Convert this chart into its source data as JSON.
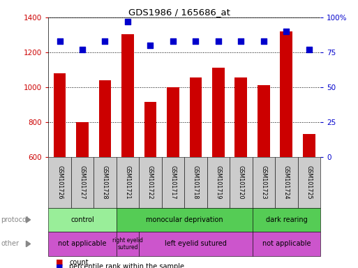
{
  "title": "GDS1986 / 165686_at",
  "samples": [
    "GSM101726",
    "GSM101727",
    "GSM101728",
    "GSM101721",
    "GSM101722",
    "GSM101717",
    "GSM101718",
    "GSM101719",
    "GSM101720",
    "GSM101723",
    "GSM101724",
    "GSM101725"
  ],
  "counts": [
    1080,
    800,
    1040,
    1305,
    915,
    1000,
    1055,
    1110,
    1055,
    1010,
    1320,
    730
  ],
  "percentiles": [
    83,
    77,
    83,
    97,
    80,
    83,
    83,
    83,
    83,
    83,
    90,
    77
  ],
  "ylim_left": [
    600,
    1400
  ],
  "ylim_right": [
    0,
    100
  ],
  "yticks_left": [
    600,
    800,
    1000,
    1200,
    1400
  ],
  "yticks_right": [
    0,
    25,
    50,
    75,
    100
  ],
  "bar_color": "#cc0000",
  "dot_color": "#0000cc",
  "bar_bottom": 600,
  "protocol_groups": [
    {
      "label": "control",
      "start": 0,
      "end": 3,
      "color": "#aaeea a"
    },
    {
      "label": "monocular deprivation",
      "start": 3,
      "end": 9,
      "color": "#66dd66"
    },
    {
      "label": "dark rearing",
      "start": 9,
      "end": 12,
      "color": "#66dd66"
    }
  ],
  "other_groups": [
    {
      "label": "not applicable",
      "start": 0,
      "end": 3,
      "color": "#dd66dd"
    },
    {
      "label": "right eyelid\nsutured",
      "start": 3,
      "end": 4,
      "color": "#dd66dd"
    },
    {
      "label": "left eyelid sutured",
      "start": 4,
      "end": 9,
      "color": "#dd66dd"
    },
    {
      "label": "not applicable",
      "start": 9,
      "end": 12,
      "color": "#dd66dd"
    }
  ],
  "protocol_label": "protocol",
  "other_label": "other",
  "legend_count_label": "count",
  "legend_pct_label": "percentile rank within the sample",
  "bar_color_red": "#cc0000",
  "dot_color_blue": "#0000cc",
  "tick_label_bg": "#cccccc",
  "control_color": "#99ee99",
  "monocular_color": "#55cc55",
  "dark_color": "#55cc55",
  "other_color": "#cc55cc"
}
